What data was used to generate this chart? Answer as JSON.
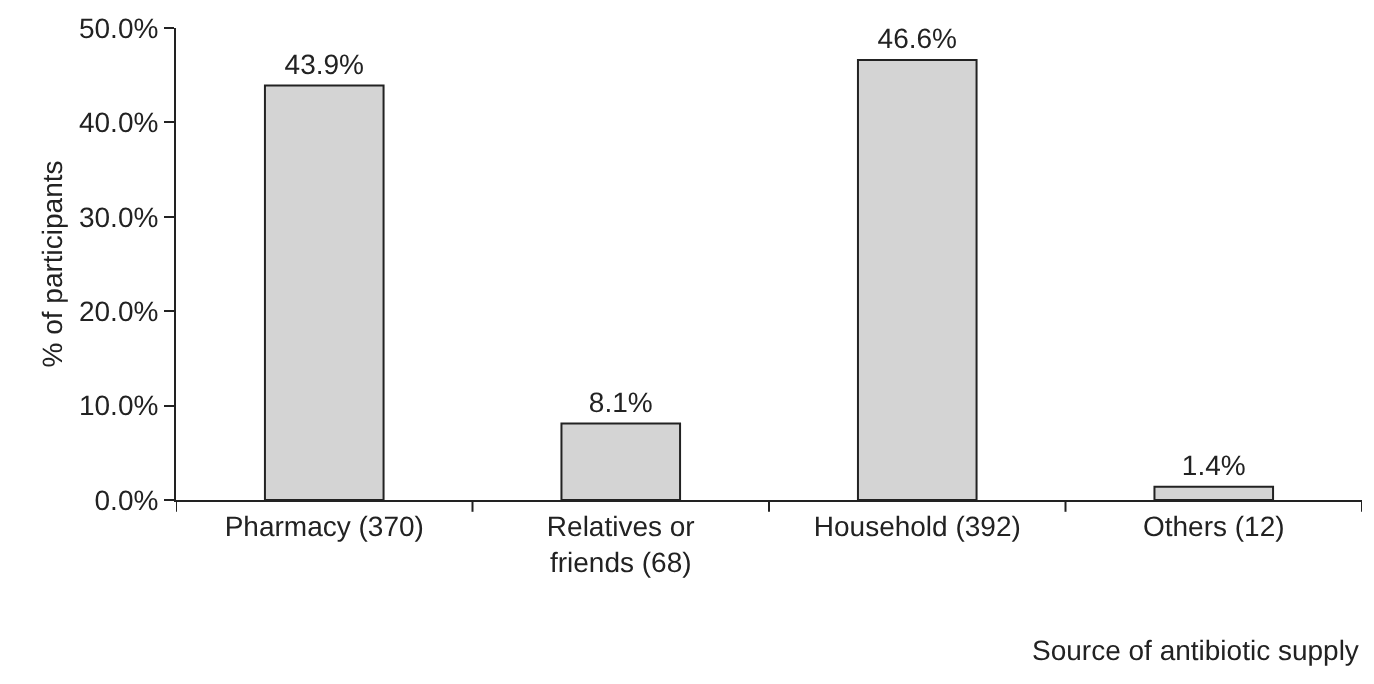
{
  "chart_data": {
    "type": "bar",
    "xlabel": "Source of antibiotic supply",
    "ylabel": "% of participants",
    "categories": [
      "Pharmacy (370)",
      "Relatives or friends (68)",
      "Household (392)",
      "Others (12)"
    ],
    "values": [
      43.9,
      8.1,
      46.6,
      1.4
    ],
    "value_labels": [
      "43.9%",
      "8.1%",
      "46.6%",
      "1.4%"
    ],
    "color": "#d4d4d4",
    "ylim": [
      0,
      50
    ],
    "yticks": [
      {
        "value": 0,
        "label": "0.0%"
      },
      {
        "value": 10,
        "label": "10.0%"
      },
      {
        "value": 20,
        "label": "20.0%"
      },
      {
        "value": 30,
        "label": "30.0%"
      },
      {
        "value": 40,
        "label": "40.0%"
      },
      {
        "value": 50,
        "label": "50.0%"
      }
    ],
    "legend": false
  }
}
